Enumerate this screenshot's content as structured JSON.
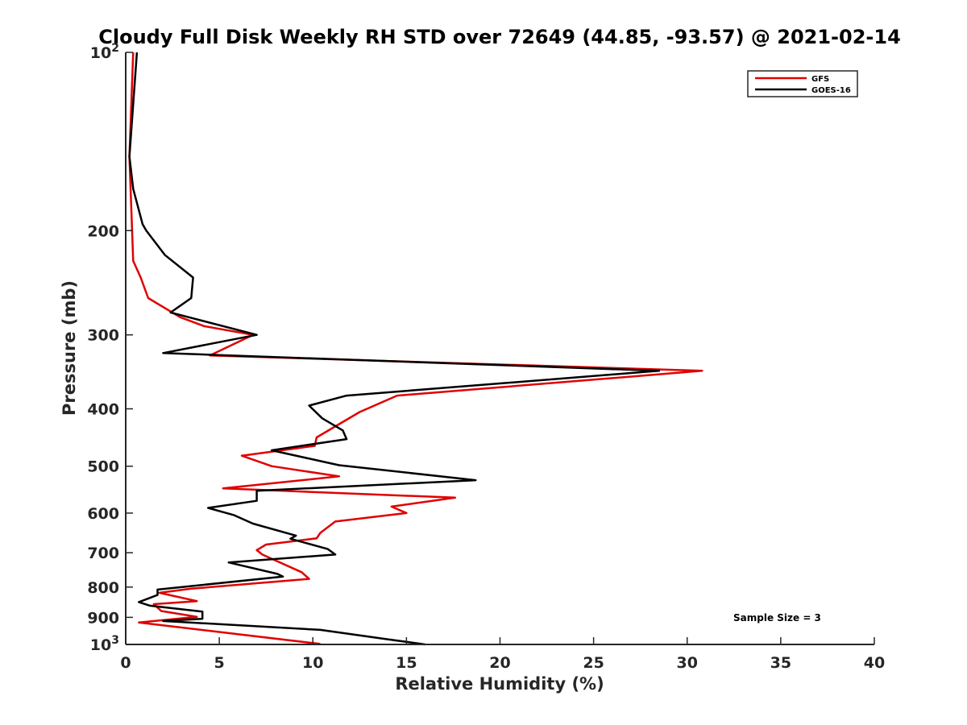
{
  "chart_data": {
    "type": "line",
    "title": "Cloudy Full Disk Weekly RH STD over 72649 (44.85, -93.57) @ 2021-02-14",
    "xlabel": "Relative Humidity (%)",
    "ylabel": "Pressure (mb)",
    "xlim": [
      0,
      40
    ],
    "ylim": [
      100,
      1000
    ],
    "y_scale": "log",
    "y_reversed": true,
    "grid": false,
    "legend_position": "top-right",
    "x_ticks": [
      "0",
      "5",
      "10",
      "15",
      "20",
      "25",
      "30",
      "35",
      "40"
    ],
    "y_ticks": [
      {
        "value": 100,
        "base": "10",
        "exp": "2"
      },
      {
        "value": 200,
        "label": "200"
      },
      {
        "value": 300,
        "label": "300"
      },
      {
        "value": 400,
        "label": "400"
      },
      {
        "value": 500,
        "label": "500"
      },
      {
        "value": 600,
        "label": "600"
      },
      {
        "value": 700,
        "label": "700"
      },
      {
        "value": 800,
        "label": "800"
      },
      {
        "value": 900,
        "label": "900"
      },
      {
        "value": 1000,
        "base": "10",
        "exp": "3"
      }
    ],
    "annotation": "Sample Size = 3",
    "series": [
      {
        "name": "GFS",
        "color": "#e00000",
        "points": [
          [
            0.4,
            100
          ],
          [
            0.2,
            150
          ],
          [
            0.4,
            225
          ],
          [
            0.8,
            240
          ],
          [
            1.2,
            260
          ],
          [
            2.9,
            280
          ],
          [
            4.2,
            290
          ],
          [
            6.8,
            300
          ],
          [
            4.5,
            325
          ],
          [
            30.8,
            345
          ],
          [
            14.5,
            380
          ],
          [
            12.5,
            405
          ],
          [
            10.2,
            447
          ],
          [
            10.1,
            462
          ],
          [
            6.2,
            480
          ],
          [
            7.8,
            500
          ],
          [
            11.4,
            520
          ],
          [
            5.2,
            545
          ],
          [
            17.6,
            565
          ],
          [
            14.2,
            585
          ],
          [
            15.0,
            600
          ],
          [
            11.2,
            620
          ],
          [
            10.4,
            648
          ],
          [
            10.2,
            662
          ],
          [
            7.5,
            678
          ],
          [
            7.0,
            693
          ],
          [
            7.3,
            705
          ],
          [
            9.4,
            755
          ],
          [
            9.8,
            775
          ],
          [
            3.5,
            805
          ],
          [
            1.8,
            818
          ],
          [
            3.8,
            845
          ],
          [
            1.5,
            855
          ],
          [
            1.9,
            878
          ],
          [
            3.8,
            898
          ],
          [
            0.7,
            918
          ],
          [
            10.4,
            998
          ]
        ]
      },
      {
        "name": "GOES-16",
        "color": "#000000",
        "points": [
          [
            0.6,
            100
          ],
          [
            0.2,
            150
          ],
          [
            0.4,
            170
          ],
          [
            0.9,
            195
          ],
          [
            1.1,
            200
          ],
          [
            2.1,
            220
          ],
          [
            3.6,
            240
          ],
          [
            3.5,
            260
          ],
          [
            2.4,
            275
          ],
          [
            7.0,
            300
          ],
          [
            2.0,
            322
          ],
          [
            28.5,
            345
          ],
          [
            11.8,
            380
          ],
          [
            9.8,
            395
          ],
          [
            10.5,
            415
          ],
          [
            11.6,
            435
          ],
          [
            11.8,
            450
          ],
          [
            7.8,
            470
          ],
          [
            11.4,
            498
          ],
          [
            18.7,
            528
          ],
          [
            7.0,
            550
          ],
          [
            7.0,
            572
          ],
          [
            4.4,
            588
          ],
          [
            5.8,
            605
          ],
          [
            6.8,
            625
          ],
          [
            9.1,
            655
          ],
          [
            8.8,
            663
          ],
          [
            10.8,
            690
          ],
          [
            11.2,
            705
          ],
          [
            5.5,
            727
          ],
          [
            8.1,
            760
          ],
          [
            8.4,
            768
          ],
          [
            1.7,
            808
          ],
          [
            1.7,
            825
          ],
          [
            0.7,
            848
          ],
          [
            1.3,
            860
          ],
          [
            4.1,
            880
          ],
          [
            4.1,
            905
          ],
          [
            2.0,
            913
          ],
          [
            10.4,
            945
          ],
          [
            14.0,
            980
          ],
          [
            16.0,
            1000
          ]
        ]
      }
    ]
  }
}
